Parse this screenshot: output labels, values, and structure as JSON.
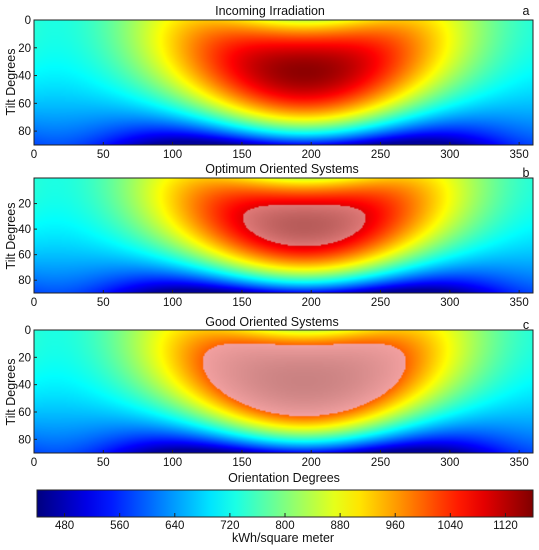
{
  "chart_data": [
    {
      "type": "heatmap",
      "panel_letter": "a",
      "title": "Incoming Irradiation",
      "ylabel": "Tilt Degrees",
      "xlabel": "",
      "xlim": [
        0,
        360
      ],
      "ylim": [
        90,
        0
      ],
      "x_ticks": [
        0,
        50,
        100,
        150,
        200,
        250,
        300,
        350
      ],
      "y_ticks": [
        0,
        20,
        40,
        60,
        80
      ],
      "peak": {
        "orientation": 195,
        "tilt": 37,
        "value": 1150
      },
      "min_value": 460,
      "highlight": null
    },
    {
      "type": "heatmap",
      "panel_letter": "b",
      "title": "Optimum Oriented Systems",
      "ylabel": "Tilt Degrees",
      "xlabel": "",
      "xlim": [
        0,
        360
      ],
      "ylim": [
        90,
        0
      ],
      "x_ticks": [
        0,
        50,
        100,
        150,
        200,
        250,
        300,
        350
      ],
      "y_ticks": [
        20,
        40,
        60,
        80
      ],
      "peak": {
        "orientation": 195,
        "tilt": 37,
        "value": 1150
      },
      "min_value": 460,
      "highlight": {
        "rule": "value >= threshold",
        "threshold": 1090,
        "color": "#e07a78"
      }
    },
    {
      "type": "heatmap",
      "panel_letter": "c",
      "title": "Good Oriented Systems",
      "ylabel": "Tilt Degrees",
      "xlabel": "Orientation Degrees",
      "xlim": [
        0,
        360
      ],
      "ylim": [
        90,
        0
      ],
      "x_ticks": [
        0,
        50,
        100,
        150,
        200,
        250,
        300,
        350
      ],
      "y_ticks": [
        0,
        20,
        40,
        60,
        80
      ],
      "peak": {
        "orientation": 195,
        "tilt": 37,
        "value": 1150
      },
      "min_value": 460,
      "highlight": {
        "rule": "value >= threshold",
        "threshold": 1000,
        "color": "#f2a0a0"
      }
    }
  ],
  "colorbar": {
    "label": "kWh/square meter",
    "range": [
      440,
      1160
    ],
    "ticks": [
      480,
      560,
      640,
      720,
      800,
      880,
      960,
      1040,
      1120
    ],
    "colormap": "jet"
  }
}
